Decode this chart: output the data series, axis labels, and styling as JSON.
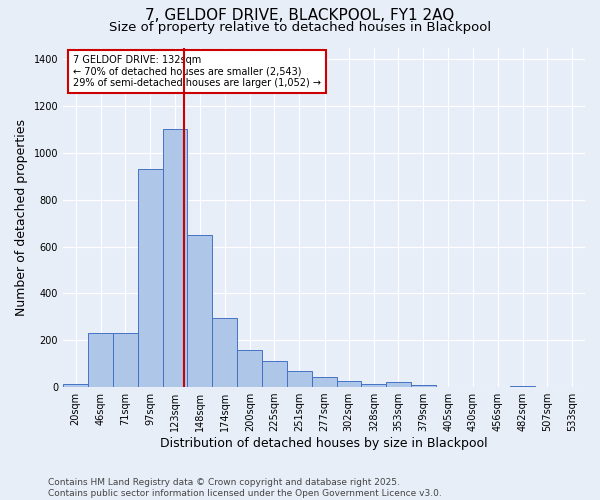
{
  "title_line1": "7, GELDOF DRIVE, BLACKPOOL, FY1 2AQ",
  "title_line2": "Size of property relative to detached houses in Blackpool",
  "xlabel": "Distribution of detached houses by size in Blackpool",
  "ylabel": "Number of detached properties",
  "bin_centers": [
    20,
    46,
    71,
    97,
    123,
    148,
    174,
    200,
    225,
    251,
    277,
    302,
    328,
    353,
    379,
    405,
    430,
    456,
    482,
    507,
    533
  ],
  "bar_heights": [
    15,
    230,
    230,
    930,
    1100,
    650,
    295,
    160,
    110,
    70,
    45,
    25,
    15,
    20,
    10,
    0,
    0,
    0,
    5,
    0,
    0
  ],
  "tick_labels": [
    "20sqm",
    "46sqm",
    "71sqm",
    "97sqm",
    "123sqm",
    "148sqm",
    "174sqm",
    "200sqm",
    "225sqm",
    "251sqm",
    "277sqm",
    "302sqm",
    "328sqm",
    "353sqm",
    "379sqm",
    "405sqm",
    "430sqm",
    "456sqm",
    "482sqm",
    "507sqm",
    "533sqm"
  ],
  "bar_color": "#aec6e8",
  "bar_edge_color": "#4472c4",
  "background_color": "#e8eef8",
  "grid_color": "#ffffff",
  "red_line_x": 132,
  "annotation_text": "7 GELDOF DRIVE: 132sqm\n← 70% of detached houses are smaller (2,543)\n29% of semi-detached houses are larger (1,052) →",
  "annotation_box_color": "#ffffff",
  "annotation_box_edge": "#cc0000",
  "ylim": [
    0,
    1450
  ],
  "yticks": [
    0,
    200,
    400,
    600,
    800,
    1000,
    1200,
    1400
  ],
  "footer_text": "Contains HM Land Registry data © Crown copyright and database right 2025.\nContains public sector information licensed under the Open Government Licence v3.0.",
  "title_fontsize": 11,
  "subtitle_fontsize": 9.5,
  "axis_label_fontsize": 9,
  "tick_fontsize": 7,
  "footer_fontsize": 6.5
}
